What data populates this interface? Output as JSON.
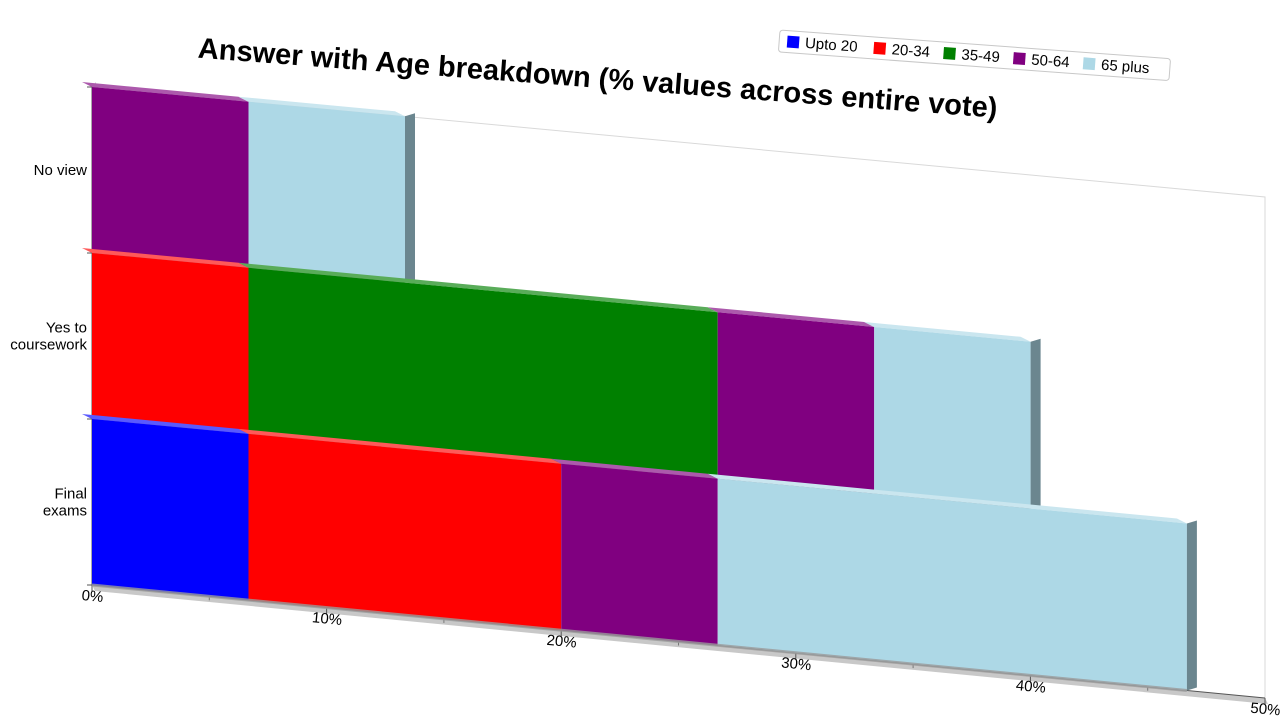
{
  "chart_data": {
    "type": "bar",
    "orientation": "horizontal",
    "stacked": true,
    "style": "3d-perspective",
    "title": "Answer with Age breakdown (% values across entire vote)",
    "categories": [
      "No view",
      "Yes to\ncoursework",
      "Final\nexams"
    ],
    "series": [
      {
        "name": "Upto 20",
        "color": "#0000FF",
        "values": [
          0,
          0,
          6.67
        ]
      },
      {
        "name": "20-34",
        "color": "#FF0000",
        "values": [
          0,
          6.67,
          13.33
        ]
      },
      {
        "name": "35-49",
        "color": "#008000",
        "values": [
          0,
          20,
          0
        ]
      },
      {
        "name": "50-64",
        "color": "#800080",
        "values": [
          6.67,
          6.67,
          6.67
        ]
      },
      {
        "name": "65 plus",
        "color": "#ADD8E6",
        "values": [
          6.67,
          6.67,
          20
        ]
      }
    ],
    "xlim": [
      0,
      50
    ],
    "xticks": [
      "0%",
      "10%",
      "20%",
      "30%",
      "40%",
      "50%"
    ],
    "xtick_values": [
      0,
      10,
      20,
      30,
      40,
      50
    ],
    "legend_position": "top-right",
    "grid": false
  }
}
